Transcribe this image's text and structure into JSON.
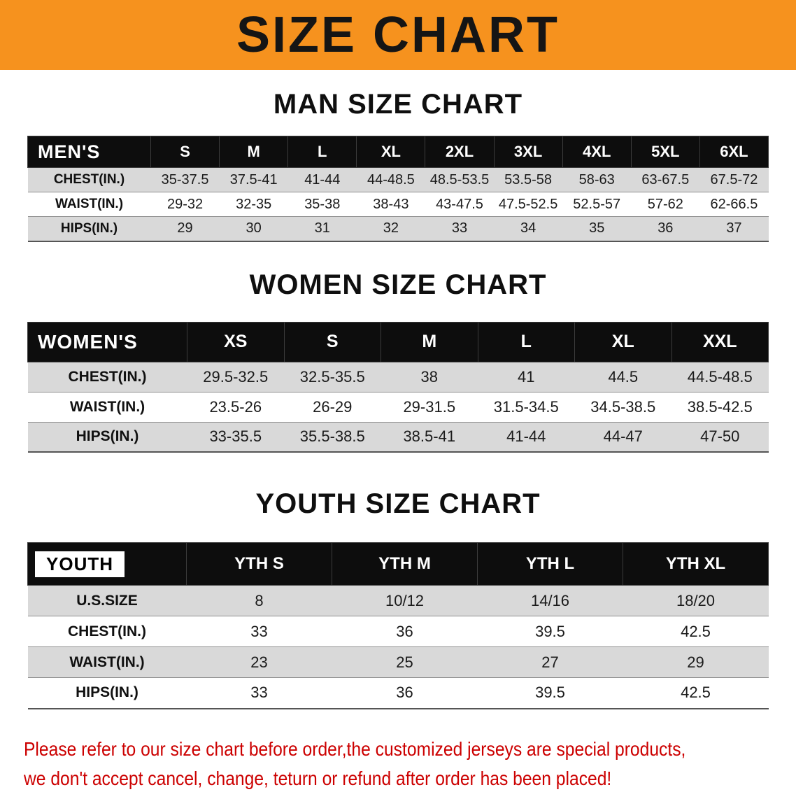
{
  "banner": {
    "title": "SIZE CHART"
  },
  "chart_data": [
    {
      "type": "table",
      "title": "MAN SIZE CHART",
      "corner_label": "MEN'S",
      "columns": [
        "S",
        "M",
        "L",
        "XL",
        "2XL",
        "3XL",
        "4XL",
        "5XL",
        "6XL"
      ],
      "rows": [
        {
          "label": "CHEST(IN.)",
          "values": [
            "35-37.5",
            "37.5-41",
            "41-44",
            "44-48.5",
            "48.5-53.5",
            "53.5-58",
            "58-63",
            "63-67.5",
            "67.5-72"
          ]
        },
        {
          "label": "WAIST(IN.)",
          "values": [
            "29-32",
            "32-35",
            "35-38",
            "38-43",
            "43-47.5",
            "47.5-52.5",
            "52.5-57",
            "57-62",
            "62-66.5"
          ]
        },
        {
          "label": "HIPS(IN.)",
          "values": [
            "29",
            "30",
            "31",
            "32",
            "33",
            "34",
            "35",
            "36",
            "37"
          ]
        }
      ]
    },
    {
      "type": "table",
      "title": "WOMEN SIZE CHART",
      "corner_label": "WOMEN'S",
      "columns": [
        "XS",
        "S",
        "M",
        "L",
        "XL",
        "XXL"
      ],
      "rows": [
        {
          "label": "CHEST(IN.)",
          "values": [
            "29.5-32.5",
            "32.5-35.5",
            "38",
            "41",
            "44.5",
            "44.5-48.5"
          ]
        },
        {
          "label": "WAIST(IN.)",
          "values": [
            "23.5-26",
            "26-29",
            "29-31.5",
            "31.5-34.5",
            "34.5-38.5",
            "38.5-42.5"
          ]
        },
        {
          "label": "HIPS(IN.)",
          "values": [
            "33-35.5",
            "35.5-38.5",
            "38.5-41",
            "41-44",
            "44-47",
            "47-50"
          ]
        }
      ]
    },
    {
      "type": "table",
      "title": "YOUTH SIZE CHART",
      "corner_label": "YOUTH",
      "columns": [
        "YTH S",
        "YTH M",
        "YTH L",
        "YTH XL"
      ],
      "rows": [
        {
          "label": "U.S.SIZE",
          "values": [
            "8",
            "10/12",
            "14/16",
            "18/20"
          ]
        },
        {
          "label": "CHEST(IN.)",
          "values": [
            "33",
            "36",
            "39.5",
            "42.5"
          ]
        },
        {
          "label": "WAIST(IN.)",
          "values": [
            "23",
            "25",
            "27",
            "29"
          ]
        },
        {
          "label": "HIPS(IN.)",
          "values": [
            "33",
            "36",
            "39.5",
            "42.5"
          ]
        }
      ]
    }
  ],
  "note": {
    "line1": "Please refer to our size chart before order,the customized jerseys are special products,",
    "line2": "we don't accept cancel, change, teturn or refund after order has been placed!"
  },
  "colors": {
    "banner_orange": "#F6921E",
    "header_black": "#0D0D0D",
    "stripe_gray": "#D9D9D9",
    "line_gray": "#8F8F8F",
    "note_red": "#CC0000"
  }
}
